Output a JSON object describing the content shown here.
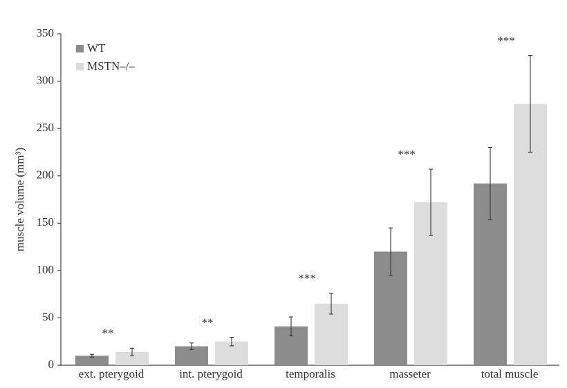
{
  "chart_data": {
    "type": "bar",
    "y_label": "muscle volume (mm³)",
    "categories": [
      "ext. pterygoid",
      "int. pterygoid",
      "temporalis",
      "masseter",
      "total muscle"
    ],
    "series": [
      {
        "name": "WT",
        "color": "#8c8c8d",
        "values": [
          10,
          20,
          41,
          120,
          192
        ],
        "errors": [
          1.5,
          3.5,
          10,
          25,
          38
        ]
      },
      {
        "name": "MSTN–/–",
        "color": "#dcdcdd",
        "values": [
          14,
          25,
          65,
          172,
          276
        ],
        "errors": [
          4,
          4.5,
          11,
          35,
          51
        ]
      }
    ],
    "annotations": [
      "**",
      "**",
      "***",
      "***",
      "***"
    ],
    "ylim": [
      0,
      350
    ],
    "yticks": [
      0,
      50,
      100,
      150,
      200,
      250,
      300,
      350
    ],
    "legend": "upper-left",
    "grid": false
  }
}
